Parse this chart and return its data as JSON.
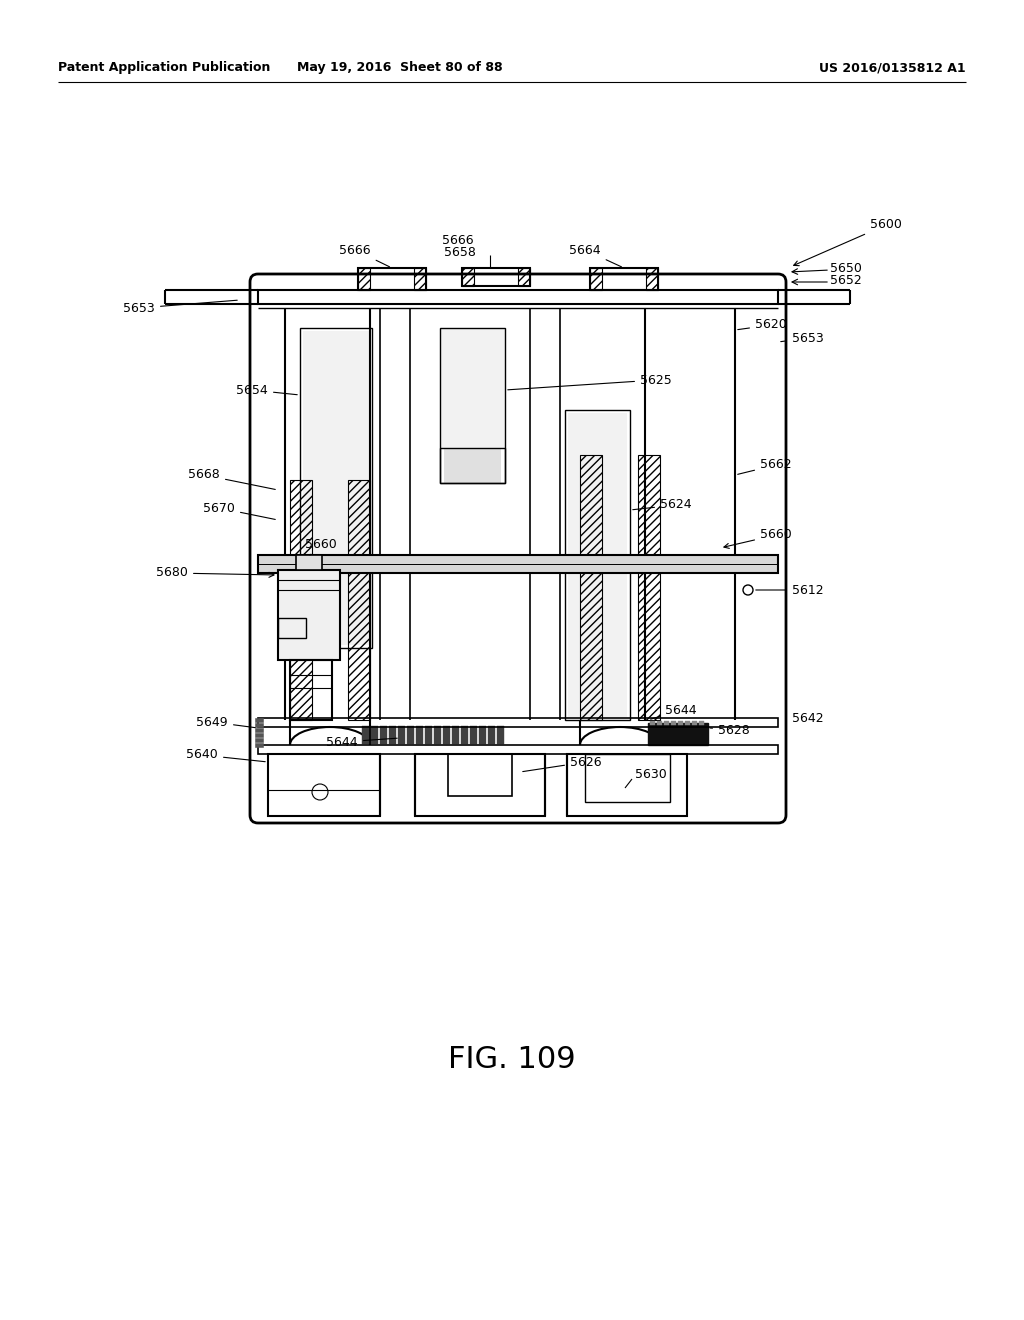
{
  "header_left": "Patent Application Publication",
  "header_mid": "May 19, 2016  Sheet 80 of 88",
  "header_right": "US 2016/0135812 A1",
  "fig_label": "FIG. 109",
  "bg_color": "#ffffff",
  "line_color": "#000000"
}
